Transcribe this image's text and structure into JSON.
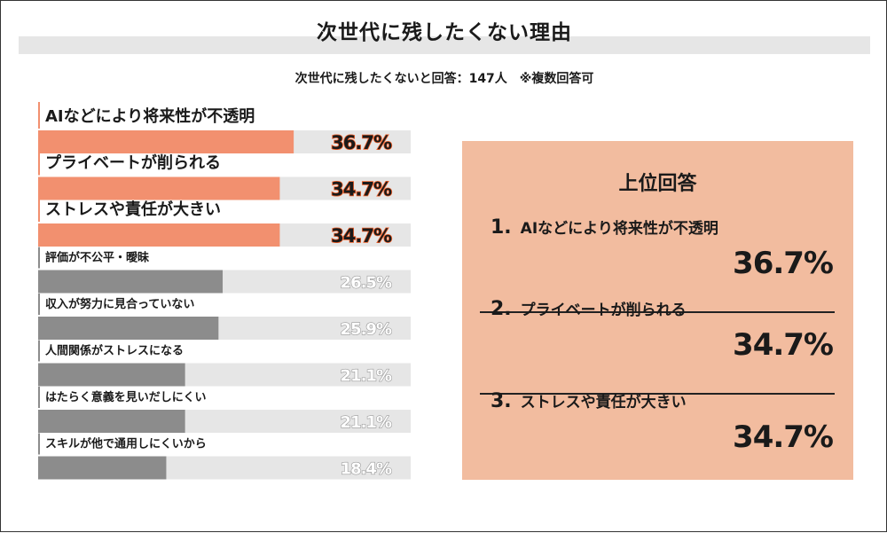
{
  "title": "次世代に残したくない理由",
  "subtitle": "次世代に残したくないと回答：147人　※複数回答可",
  "chart_data": {
    "type": "bar",
    "orientation": "horizontal",
    "categories": [
      "AIなどにより将来性が不透明",
      "プライベートが削られる",
      "ストレスや責任が大きい",
      "評価が不公平・曖昧",
      "収入が努力に見合っていない",
      "人間関係がストレスになる",
      "はたらく意義を見いだしにくい",
      "スキルが他で通用しにくいから"
    ],
    "values": [
      36.7,
      34.7,
      34.7,
      26.5,
      25.9,
      21.1,
      21.1,
      18.4
    ],
    "value_labels": [
      "36.7%",
      "34.7%",
      "34.7%",
      "26.5%",
      "25.9%",
      "21.1%",
      "21.1%",
      "18.4%"
    ],
    "highlight_count": 3,
    "xlim": [
      0,
      53.5
    ],
    "colors": {
      "highlight_bar": "#f2906f",
      "normal_bar": "#8c8c8c",
      "track": "#e6e6e6",
      "highlight_text": "#1a1a1a",
      "highlight_outline": "#f0602a",
      "normal_text": "#ffffff",
      "normal_outline": "#9a9a9a",
      "panel_bg": "#f2bc9f"
    }
  },
  "panel": {
    "title": "上位回答",
    "ranks": [
      {
        "num": "1.",
        "label": "AIなどにより将来性が不透明",
        "value": "36.7%"
      },
      {
        "num": "2.",
        "label": "プライベートが削られる",
        "value": "34.7%"
      },
      {
        "num": "3.",
        "label": "ストレスや責任が大きい",
        "value": "34.7%"
      }
    ]
  }
}
